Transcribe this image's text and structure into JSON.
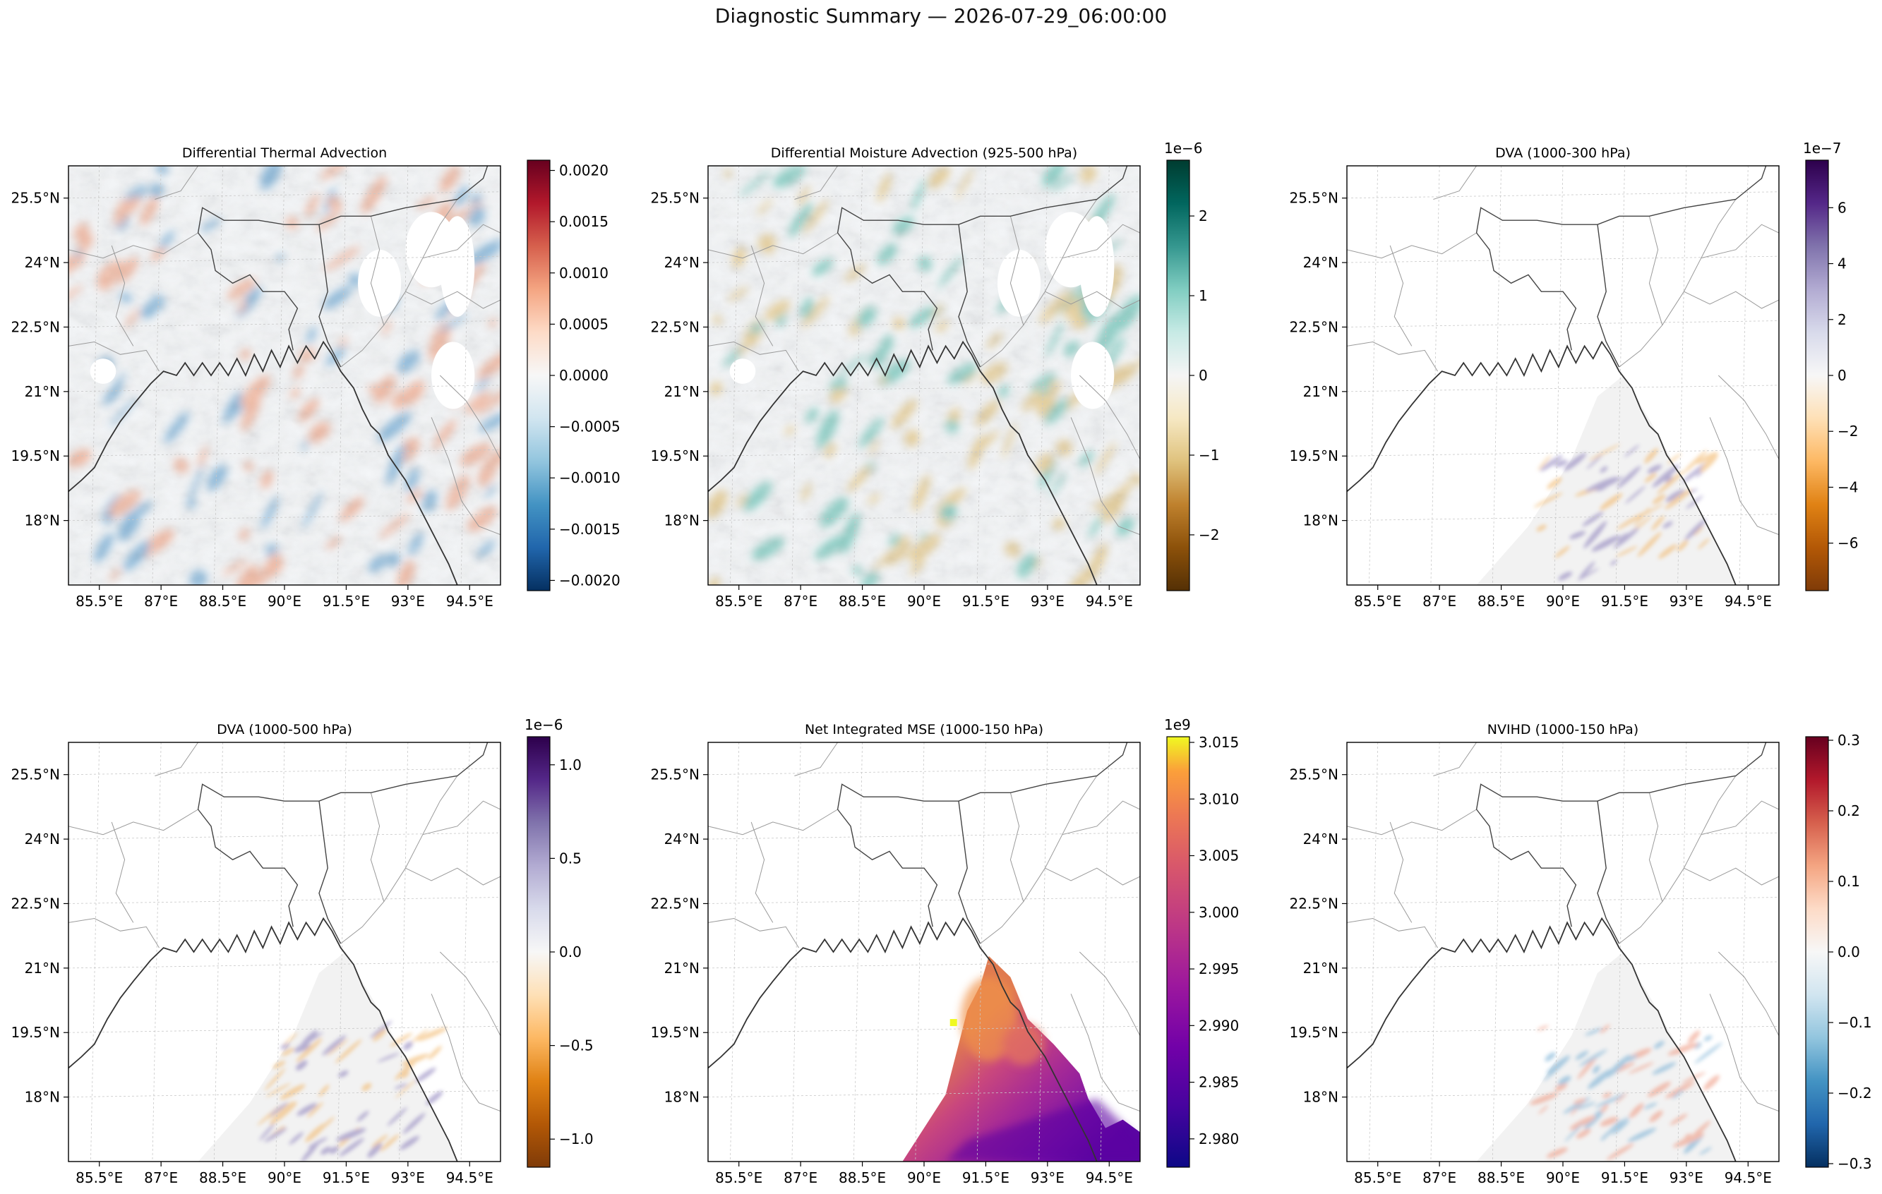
{
  "figure": {
    "suptitle": "Diagnostic Summary — 2026-07-29_06:00:00"
  },
  "chart_data": [
    {
      "type": "heatmap",
      "title": "Differential Thermal Advection",
      "x_ticks": [
        "85.5°E",
        "87°E",
        "88.5°E",
        "90°E",
        "91.5°E",
        "93°E",
        "94.5°E"
      ],
      "y_ticks": [
        "25.5°N",
        "24°N",
        "22.5°N",
        "21°N",
        "19.5°N",
        "18°N"
      ],
      "colormap": "RdBu_r",
      "colorbar_ticks": [
        "0.0020",
        "0.0015",
        "0.0010",
        "0.0005",
        "0.0000",
        "−0.0005",
        "−0.0010",
        "−0.0015",
        "−0.0020"
      ],
      "colorbar_range": [
        -0.0021,
        0.0021
      ],
      "colorbar_offset": ""
    },
    {
      "type": "heatmap",
      "title": "Differential Moisture Advection (925-500 hPa)",
      "x_ticks": [
        "85.5°E",
        "87°E",
        "88.5°E",
        "90°E",
        "91.5°E",
        "93°E",
        "94.5°E"
      ],
      "y_ticks": [
        "25.5°N",
        "24°N",
        "22.5°N",
        "21°N",
        "19.5°N",
        "18°N"
      ],
      "colormap": "BrBG",
      "colorbar_ticks": [
        "2",
        "1",
        "0",
        "−1",
        "−2"
      ],
      "colorbar_range": [
        -2.7,
        2.7
      ],
      "colorbar_offset": "1e−6"
    },
    {
      "type": "heatmap",
      "title": "DVA (1000-300 hPa)",
      "x_ticks": [
        "85.5°E",
        "87°E",
        "88.5°E",
        "90°E",
        "91.5°E",
        "93°E",
        "94.5°E"
      ],
      "y_ticks": [
        "25.5°N",
        "24°N",
        "22.5°N",
        "21°N",
        "19.5°N",
        "18°N"
      ],
      "colormap": "PuOr",
      "colorbar_ticks": [
        "6",
        "4",
        "2",
        "0",
        "−2",
        "−4",
        "−6"
      ],
      "colorbar_range": [
        -7.7,
        7.7
      ],
      "colorbar_offset": "1e−7"
    },
    {
      "type": "heatmap",
      "title": "DVA (1000-500 hPa)",
      "x_ticks": [
        "85.5°E",
        "87°E",
        "88.5°E",
        "90°E",
        "91.5°E",
        "93°E",
        "94.5°E"
      ],
      "y_ticks": [
        "25.5°N",
        "24°N",
        "22.5°N",
        "21°N",
        "19.5°N",
        "18°N"
      ],
      "colormap": "PuOr",
      "colorbar_ticks": [
        "1.0",
        "0.5",
        "0.0",
        "−0.5",
        "−1.0"
      ],
      "colorbar_range": [
        -1.15,
        1.15
      ],
      "colorbar_offset": "1e−6"
    },
    {
      "type": "heatmap",
      "title": "Net Integrated MSE (1000-150 hPa)",
      "x_ticks": [
        "85.5°E",
        "87°E",
        "88.5°E",
        "90°E",
        "91.5°E",
        "93°E",
        "94.5°E"
      ],
      "y_ticks": [
        "25.5°N",
        "24°N",
        "22.5°N",
        "21°N",
        "19.5°N",
        "18°N"
      ],
      "colormap": "plasma",
      "colorbar_ticks": [
        "3.015",
        "3.010",
        "3.005",
        "3.000",
        "2.995",
        "2.990",
        "2.985",
        "2.980"
      ],
      "colorbar_range": [
        2.9775,
        3.0155
      ],
      "colorbar_offset": "1e9"
    },
    {
      "type": "heatmap",
      "title": "NVIHD (1000-150 hPa)",
      "x_ticks": [
        "85.5°E",
        "87°E",
        "88.5°E",
        "90°E",
        "91.5°E",
        "93°E",
        "94.5°E"
      ],
      "y_ticks": [
        "25.5°N",
        "24°N",
        "22.5°N",
        "21°N",
        "19.5°N",
        "18°N"
      ],
      "colormap": "RdBu_r",
      "colorbar_ticks": [
        "0.3",
        "0.2",
        "0.1",
        "0.0",
        "−0.1",
        "−0.2",
        "−0.3"
      ],
      "colorbar_range": [
        -0.305,
        0.305
      ],
      "colorbar_offset": ""
    }
  ]
}
